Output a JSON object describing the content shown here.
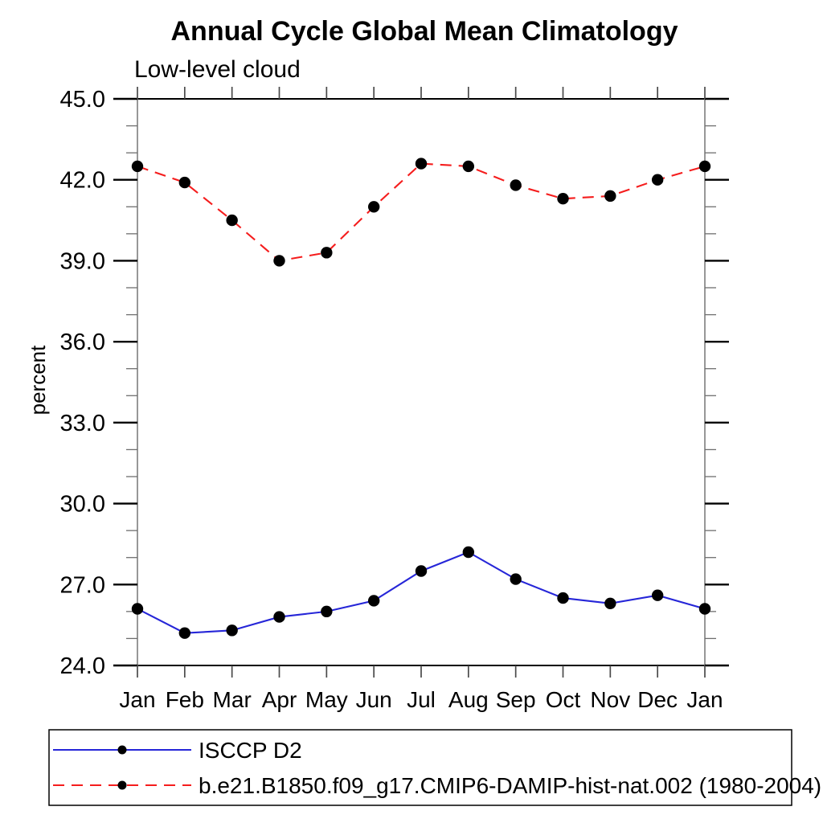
{
  "chart_data": {
    "type": "line",
    "title": "Annual Cycle Global Mean Climatology",
    "subtitle": "Low-level cloud",
    "ylabel": "percent",
    "xlabel": "",
    "categories": [
      "Jan",
      "Feb",
      "Mar",
      "Apr",
      "May",
      "Jun",
      "Jul",
      "Aug",
      "Sep",
      "Oct",
      "Nov",
      "Dec",
      "Jan"
    ],
    "ylim": [
      24.0,
      45.0
    ],
    "ytick_major": [
      24,
      27,
      30,
      33,
      36,
      39,
      42,
      45
    ],
    "ytick_labels": [
      "24.0",
      "27.0",
      "30.0",
      "33.0",
      "36.0",
      "39.0",
      "42.0",
      "45.0"
    ],
    "ytick_minor_step": 1.0,
    "grid": false,
    "legend_position": "bottom-left-box",
    "series": [
      {
        "name": "ISCCP D2",
        "color": "#2626d8",
        "line_style": "solid",
        "marker": "filled-circle",
        "marker_color": "#000000",
        "values": [
          26.1,
          25.2,
          25.3,
          25.8,
          26.0,
          26.4,
          27.5,
          28.2,
          27.2,
          26.5,
          26.3,
          26.6,
          26.1
        ]
      },
      {
        "name": "b.e21.B1850.f09_g17.CMIP6-DAMIP-hist-nat.002 (1980-2004)",
        "color": "#f51d1d",
        "line_style": "dashed",
        "marker": "filled-circle",
        "marker_color": "#000000",
        "values": [
          42.5,
          41.9,
          40.5,
          39.0,
          39.3,
          41.0,
          42.6,
          42.5,
          41.8,
          41.3,
          41.4,
          42.0,
          42.5
        ]
      }
    ]
  }
}
